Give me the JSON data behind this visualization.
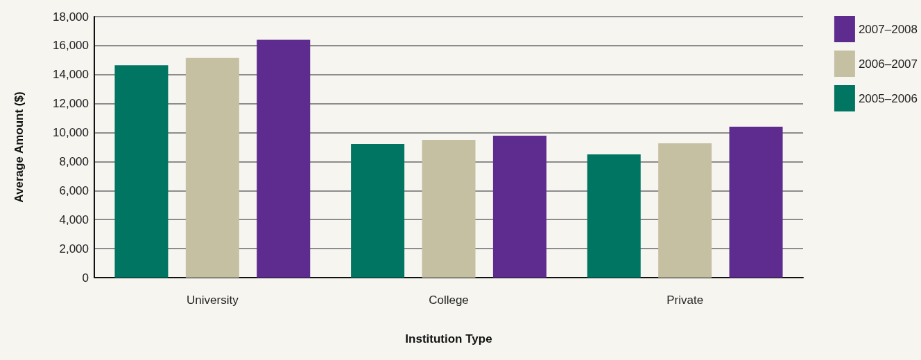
{
  "chart_data": {
    "type": "bar",
    "xlabel": "Institution Type",
    "ylabel": "Average Amount ($)",
    "categories": [
      "University",
      "College",
      "Private"
    ],
    "series": [
      {
        "name": "2005–2006",
        "color": "#007662",
        "values": [
          14650,
          9220,
          8500
        ]
      },
      {
        "name": "2006–2007",
        "color": "#c5c0a2",
        "values": [
          15150,
          9500,
          9260
        ]
      },
      {
        "name": "2007–2008",
        "color": "#5e2c8f",
        "values": [
          16400,
          9790,
          10410
        ]
      }
    ],
    "ylim": [
      0,
      18000
    ],
    "yticks": [
      0,
      {
        "value": 2000,
        "label": "2,000"
      },
      {
        "value": 4000,
        "label": "4,000"
      },
      {
        "value": 6000,
        "label": "6,000"
      },
      {
        "value": 8000,
        "label": "8,000"
      },
      {
        "value": 10000,
        "label": "10,000"
      },
      {
        "value": 12000,
        "label": "12,000"
      },
      {
        "value": 14000,
        "label": "14,000"
      },
      {
        "value": 16000,
        "label": "16,000"
      },
      {
        "value": 18000,
        "label": "18,000"
      }
    ],
    "grid": "y",
    "legend": "right"
  }
}
